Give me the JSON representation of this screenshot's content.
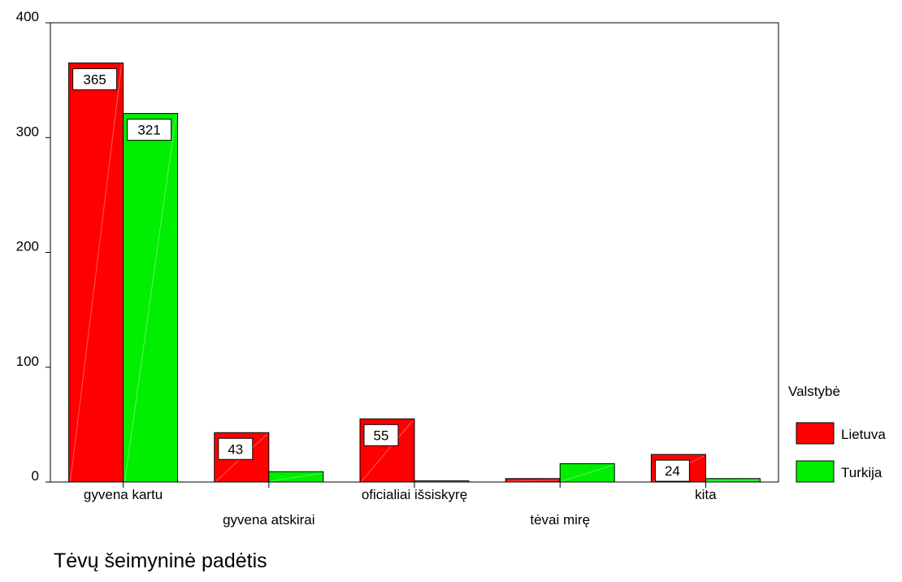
{
  "chart_data": {
    "type": "bar",
    "title": "",
    "xlabel": "Tėvų šeimyninė padėtis",
    "ylabel": "",
    "ylim": [
      0,
      400
    ],
    "yticks": [
      0,
      100,
      200,
      300,
      400
    ],
    "grid": false,
    "categories": [
      "gyvena kartu",
      "gyvena atskirai",
      "oficialiai išsiskyrę",
      "tėvai mirę",
      "kita"
    ],
    "series": [
      {
        "name": "Lietuva",
        "color": "#ff0000",
        "values": [
          365,
          43,
          55,
          3,
          24
        ]
      },
      {
        "name": "Turkija",
        "color": "#00ee00",
        "values": [
          321,
          9,
          1,
          16,
          3
        ]
      }
    ],
    "data_labels": [
      {
        "series": 0,
        "category": 0,
        "text": "365"
      },
      {
        "series": 1,
        "category": 0,
        "text": "321"
      },
      {
        "series": 0,
        "category": 1,
        "text": "43"
      },
      {
        "series": 0,
        "category": 2,
        "text": "55"
      },
      {
        "series": 0,
        "category": 4,
        "text": "24"
      }
    ],
    "legend": {
      "title": "Valstybė",
      "position": "right"
    }
  }
}
